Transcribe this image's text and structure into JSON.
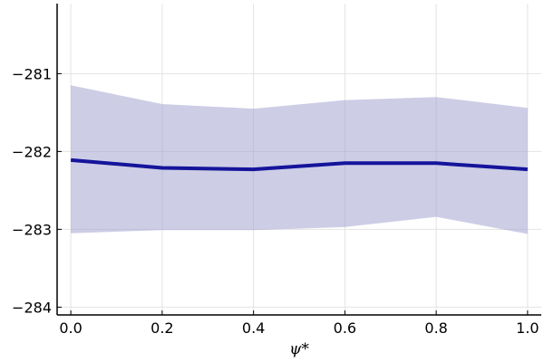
{
  "chart_data": {
    "type": "line",
    "title": "",
    "xlabel": "ψ*",
    "ylabel": "",
    "x": [
      0.0,
      0.2,
      0.4,
      0.6,
      0.8,
      1.0
    ],
    "series": [
      {
        "values": [
          -282.11,
          -282.21,
          -282.23,
          -282.15,
          -282.15,
          -282.23
        ],
        "lower": [
          -283.05,
          -283.01,
          -283.01,
          -282.97,
          -282.84,
          -283.06
        ],
        "upper": [
          -281.15,
          -281.39,
          -281.45,
          -281.34,
          -281.3,
          -281.44
        ],
        "color": "#14149b",
        "band_color": "#9b9bcd"
      }
    ],
    "xlim": [
      -0.03,
      1.03
    ],
    "ylim": [
      -284.1,
      -280.1
    ],
    "xticks": [
      0.0,
      0.2,
      0.4,
      0.6,
      0.8,
      1.0
    ],
    "xtick_labels": [
      "0.0",
      "0.2",
      "0.4",
      "0.6",
      "0.8",
      "1.0"
    ],
    "yticks": [
      -281,
      -282,
      -283,
      -284
    ],
    "ytick_labels": [
      "−281",
      "−282",
      "−283",
      "−284"
    ],
    "grid": true,
    "legend": false
  }
}
